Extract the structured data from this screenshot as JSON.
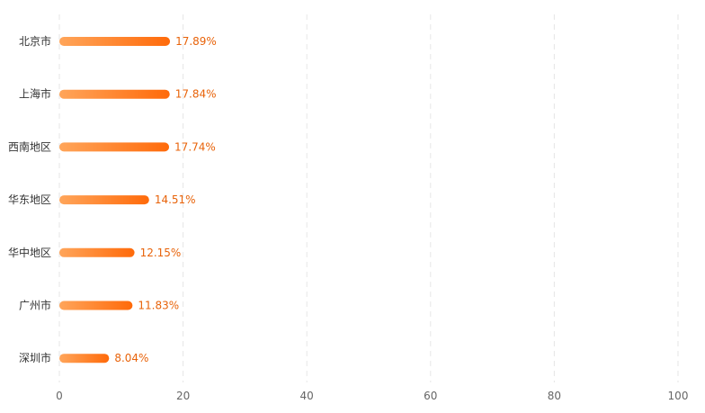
{
  "chart_data": {
    "type": "bar",
    "orientation": "horizontal",
    "categories": [
      "北京市",
      "上海市",
      "西南地区",
      "华东地区",
      "华中地区",
      "广州市",
      "深圳市"
    ],
    "values": [
      17.89,
      17.84,
      17.74,
      14.51,
      12.15,
      11.83,
      8.04
    ],
    "value_labels": [
      "17.89%",
      "17.84%",
      "17.74%",
      "14.51%",
      "12.15%",
      "11.83%",
      "8.04%"
    ],
    "xlim": [
      0,
      100
    ],
    "xticks": [
      0,
      20,
      40,
      60,
      80,
      100
    ],
    "xtick_labels": [
      "0",
      "20",
      "40",
      "60",
      "80",
      "100"
    ],
    "grid": "vertical-dashed",
    "colors": {
      "bar_start": "#ffa55a",
      "bar_end": "#ff6a0a",
      "value_label": "#e8630a",
      "category_label": "#333333",
      "tick_label": "#666666",
      "grid": "#e6e6e6"
    }
  }
}
